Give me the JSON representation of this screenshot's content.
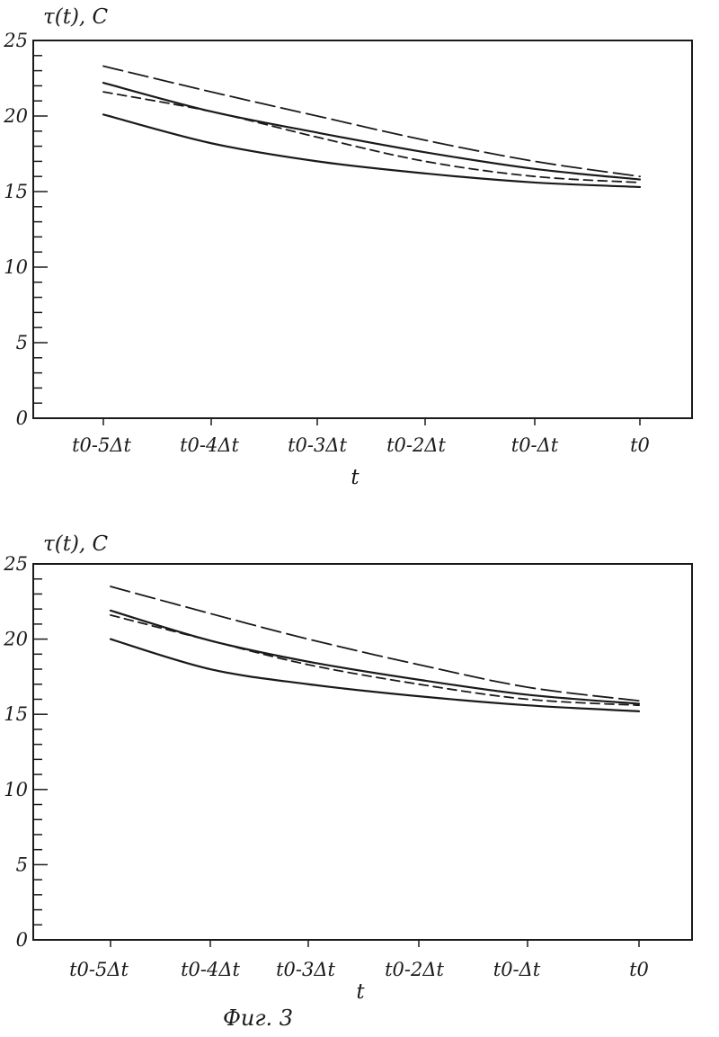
{
  "caption": "Фиг. 3",
  "chart_data": [
    {
      "type": "line",
      "ylabel": "τ(t), C",
      "xlabel": "t",
      "categories": [
        "t0-5Δt",
        "t0-4Δt",
        "t0-3Δt",
        "t0-2Δt",
        "t0-Δt",
        "t0"
      ],
      "y_ticks": [
        "0",
        "5",
        "10",
        "15",
        "20",
        "25"
      ],
      "ylim": [
        0,
        25
      ],
      "grid": false,
      "series": [
        {
          "style": "long-dash",
          "values": [
            23.3,
            21.6,
            20.0,
            18.4,
            17.0,
            16.0
          ]
        },
        {
          "style": "solid",
          "values": [
            22.2,
            20.3,
            18.9,
            17.6,
            16.5,
            15.8
          ]
        },
        {
          "style": "dash",
          "values": [
            21.6,
            20.3,
            18.6,
            17.0,
            16.0,
            15.6
          ]
        },
        {
          "style": "solid",
          "values": [
            20.1,
            18.2,
            17.0,
            16.2,
            15.6,
            15.3
          ]
        }
      ]
    },
    {
      "type": "line",
      "ylabel": "τ(t), C",
      "xlabel": "t",
      "categories": [
        "t0-5Δt",
        "t0-4Δt",
        "t0-3Δt",
        "t0-2Δt",
        "t0-Δt",
        "t0"
      ],
      "y_ticks": [
        "0",
        "5",
        "10",
        "15",
        "20",
        "25"
      ],
      "ylim": [
        0,
        25
      ],
      "grid": false,
      "series": [
        {
          "style": "long-dash",
          "values": [
            23.5,
            21.7,
            20.0,
            18.3,
            16.8,
            15.9
          ]
        },
        {
          "style": "solid",
          "values": [
            21.9,
            19.9,
            18.5,
            17.3,
            16.3,
            15.7
          ]
        },
        {
          "style": "dash",
          "values": [
            21.6,
            19.9,
            18.3,
            17.0,
            16.0,
            15.6
          ]
        },
        {
          "style": "solid",
          "values": [
            20.0,
            18.0,
            17.0,
            16.2,
            15.6,
            15.2
          ]
        }
      ]
    }
  ]
}
